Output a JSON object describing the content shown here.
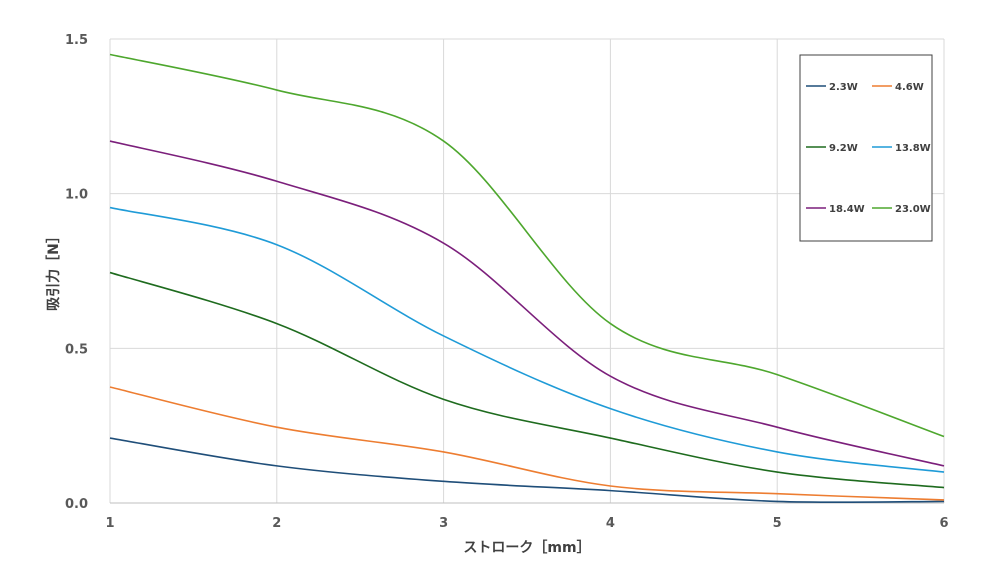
{
  "chart_data": {
    "type": "line",
    "xlabel": "ストローク［mm］",
    "ylabel": "吸引力［N］",
    "xlim": [
      1,
      6
    ],
    "ylim": [
      0,
      1.5
    ],
    "x_ticks": [
      "1",
      "2",
      "3",
      "4",
      "5",
      "6"
    ],
    "y_ticks": [
      "0.0",
      "0.5",
      "1.0",
      "1.5"
    ],
    "grid": true,
    "legend_position": "top-right",
    "x": [
      1,
      2,
      3,
      4,
      5,
      6
    ],
    "series": [
      {
        "name": "2.3W",
        "color": "#1f4e79",
        "values": [
          0.21,
          0.12,
          0.07,
          0.04,
          0.005,
          0.005
        ]
      },
      {
        "name": "4.6W",
        "color": "#ed7d31",
        "values": [
          0.375,
          0.245,
          0.165,
          0.055,
          0.03,
          0.01
        ]
      },
      {
        "name": "9.2W",
        "color": "#1e6b1e",
        "values": [
          0.745,
          0.58,
          0.335,
          0.21,
          0.1,
          0.05
        ]
      },
      {
        "name": "13.8W",
        "color": "#1f9bd7",
        "values": [
          0.955,
          0.835,
          0.54,
          0.305,
          0.165,
          0.1
        ]
      },
      {
        "name": "18.4W",
        "color": "#7b1f7b",
        "values": [
          1.17,
          1.04,
          0.84,
          0.41,
          0.245,
          0.12
        ]
      },
      {
        "name": "23.0W",
        "color": "#4ea72e",
        "values": [
          1.45,
          1.335,
          1.17,
          0.58,
          0.415,
          0.215
        ]
      }
    ]
  }
}
